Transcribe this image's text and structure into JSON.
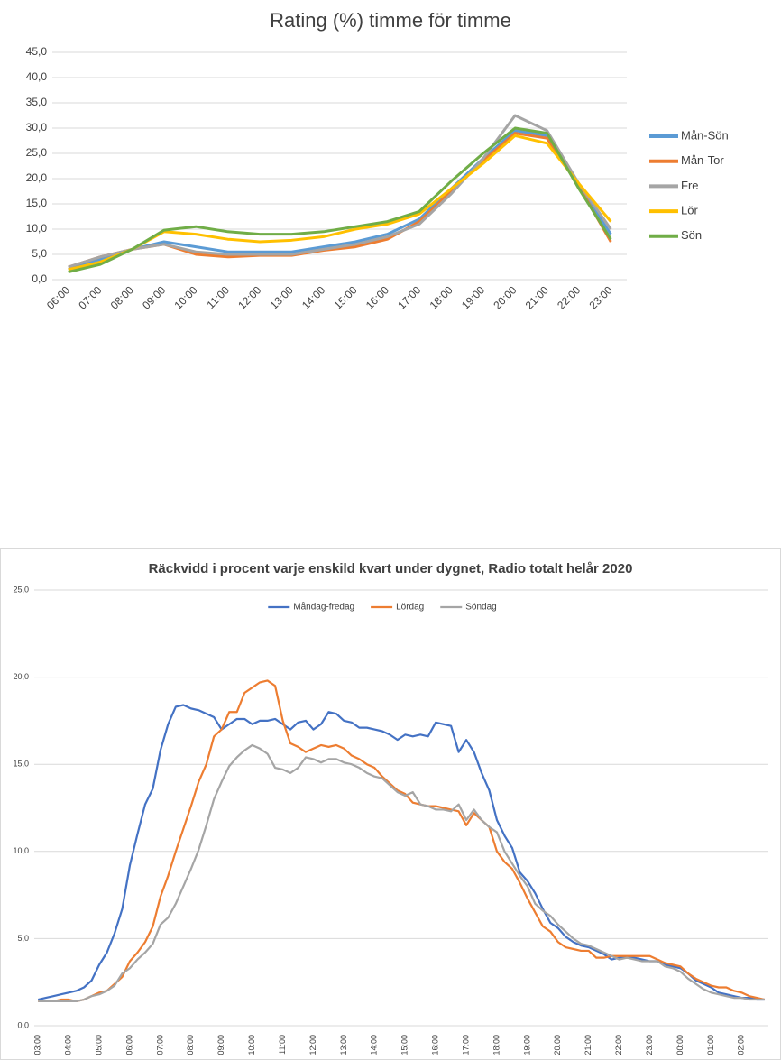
{
  "chart_data": [
    {
      "type": "line",
      "title": "Rating (%) timme för timme",
      "categories": [
        "06:00",
        "07:00",
        "08:00",
        "09:00",
        "10:00",
        "11:00",
        "12:00",
        "13:00",
        "14:00",
        "15:00",
        "16:00",
        "17:00",
        "18:00",
        "19:00",
        "20:00",
        "21:00",
        "22:00",
        "23:00"
      ],
      "series": [
        {
          "name": "Mån-Sön",
          "color": "#5b9bd5",
          "values": [
            2.0,
            4.0,
            6.0,
            7.5,
            6.5,
            5.5,
            5.5,
            5.5,
            6.5,
            7.5,
            9.0,
            12.0,
            18.0,
            24.0,
            29.5,
            28.5,
            18.5,
            9.0
          ]
        },
        {
          "name": "Mån-Tor",
          "color": "#ed7d31",
          "values": [
            2.5,
            4.5,
            6.0,
            7.0,
            5.0,
            4.5,
            4.8,
            4.8,
            5.8,
            6.5,
            8.0,
            11.5,
            17.5,
            23.5,
            29.0,
            28.0,
            18.5,
            7.5
          ]
        },
        {
          "name": "Fre",
          "color": "#a5a5a5",
          "values": [
            2.5,
            4.5,
            6.0,
            7.0,
            5.5,
            5.0,
            5.0,
            5.0,
            6.0,
            7.0,
            8.5,
            11.0,
            17.0,
            24.0,
            32.5,
            29.5,
            19.0,
            10.0
          ]
        },
        {
          "name": "Lör",
          "color": "#ffc000",
          "values": [
            2.0,
            3.5,
            6.0,
            9.5,
            9.0,
            8.0,
            7.5,
            7.8,
            8.5,
            10.0,
            11.0,
            13.0,
            18.0,
            23.0,
            28.5,
            27.0,
            19.0,
            11.5
          ]
        },
        {
          "name": "Sön",
          "color": "#70ad47",
          "values": [
            1.5,
            3.0,
            6.0,
            9.8,
            10.5,
            9.5,
            9.0,
            9.0,
            9.5,
            10.5,
            11.5,
            13.5,
            19.5,
            25.0,
            30.0,
            29.0,
            18.0,
            8.0
          ]
        }
      ],
      "ylim": [
        0,
        45
      ],
      "yticks": [
        {
          "value": 0,
          "label": "0,0"
        },
        {
          "value": 5,
          "label": "5,0"
        },
        {
          "value": 10,
          "label": "10,0"
        },
        {
          "value": 15,
          "label": "15,0"
        },
        {
          "value": 20,
          "label": "20,0"
        },
        {
          "value": 25,
          "label": "25,0"
        },
        {
          "value": 30,
          "label": "30,0"
        },
        {
          "value": 35,
          "label": "35,0"
        },
        {
          "value": 40,
          "label": "40,0"
        },
        {
          "value": 45,
          "label": "45,0"
        }
      ],
      "grid": true,
      "legend": "right"
    },
    {
      "type": "line",
      "title": "Räckvidd i procent varje enskild kvart under dygnet, Radio totalt helår 2020",
      "categories": [
        "03:00",
        null,
        null,
        null,
        "04:00",
        null,
        null,
        null,
        "05:00",
        null,
        null,
        null,
        "06:00",
        null,
        null,
        null,
        "07:00",
        null,
        null,
        null,
        "08:00",
        null,
        null,
        null,
        "09:00",
        null,
        null,
        null,
        "10:00",
        null,
        null,
        null,
        "11:00",
        null,
        null,
        null,
        "12:00",
        null,
        null,
        null,
        "13:00",
        null,
        null,
        null,
        "14:00",
        null,
        null,
        null,
        "15:00",
        null,
        null,
        null,
        "16:00",
        null,
        null,
        null,
        "17:00",
        null,
        null,
        null,
        "18:00",
        null,
        null,
        null,
        "19:00",
        null,
        null,
        null,
        "20:00",
        null,
        null,
        null,
        "21:00",
        null,
        null,
        null,
        "22:00",
        null,
        null,
        null,
        "23:00",
        null,
        null,
        null,
        "00:00",
        null,
        null,
        null,
        "01:00",
        null,
        null,
        null,
        "02:00",
        null,
        null,
        null
      ],
      "series": [
        {
          "name": "Måndag-fredag",
          "color": "#4472c4",
          "values": [
            1.5,
            1.6,
            1.7,
            1.8,
            1.9,
            2.0,
            2.2,
            2.6,
            3.5,
            4.2,
            5.3,
            6.7,
            9.2,
            11.0,
            12.7,
            13.6,
            15.8,
            17.3,
            18.3,
            18.4,
            18.2,
            18.1,
            17.9,
            17.7,
            17.0,
            17.3,
            17.6,
            17.6,
            17.3,
            17.5,
            17.5,
            17.6,
            17.3,
            17.0,
            17.4,
            17.5,
            17.0,
            17.3,
            18.0,
            17.9,
            17.5,
            17.4,
            17.1,
            17.1,
            17.0,
            16.9,
            16.7,
            16.4,
            16.7,
            16.6,
            16.7,
            16.6,
            17.4,
            17.3,
            17.2,
            15.7,
            16.4,
            15.7,
            14.5,
            13.5,
            11.8,
            10.9,
            10.2,
            8.8,
            8.3,
            7.6,
            6.7,
            5.9,
            5.6,
            5.1,
            4.8,
            4.6,
            4.5,
            4.3,
            4.1,
            3.8,
            3.9,
            3.9,
            3.9,
            3.8,
            3.7,
            3.7,
            3.5,
            3.4,
            3.3,
            3.0,
            2.6,
            2.4,
            2.2,
            1.9,
            1.8,
            1.7,
            1.6,
            1.6,
            1.5,
            1.5
          ]
        },
        {
          "name": "Lördag",
          "color": "#ed7d31",
          "values": [
            1.4,
            1.4,
            1.4,
            1.5,
            1.5,
            1.4,
            1.5,
            1.7,
            1.9,
            2.0,
            2.4,
            2.8,
            3.7,
            4.2,
            4.8,
            5.7,
            7.4,
            8.6,
            10.0,
            11.3,
            12.6,
            14.0,
            15.0,
            16.6,
            17.0,
            18.0,
            18.0,
            19.1,
            19.4,
            19.7,
            19.8,
            19.5,
            17.5,
            16.2,
            16.0,
            15.7,
            15.9,
            16.1,
            16.0,
            16.1,
            15.9,
            15.5,
            15.3,
            15.0,
            14.8,
            14.3,
            13.9,
            13.5,
            13.3,
            12.8,
            12.7,
            12.6,
            12.6,
            12.5,
            12.4,
            12.3,
            11.5,
            12.2,
            11.8,
            11.4,
            10.0,
            9.4,
            9.0,
            8.2,
            7.3,
            6.5,
            5.7,
            5.4,
            4.8,
            4.5,
            4.4,
            4.3,
            4.3,
            3.9,
            3.9,
            4.0,
            4.0,
            4.0,
            4.0,
            4.0,
            4.0,
            3.8,
            3.6,
            3.5,
            3.4,
            3.0,
            2.7,
            2.5,
            2.3,
            2.2,
            2.2,
            2.0,
            1.9,
            1.7,
            1.6,
            1.5
          ]
        },
        {
          "name": "Söndag",
          "color": "#a5a5a5",
          "values": [
            1.4,
            1.4,
            1.4,
            1.4,
            1.4,
            1.4,
            1.5,
            1.7,
            1.8,
            2.0,
            2.3,
            3.0,
            3.3,
            3.8,
            4.2,
            4.7,
            5.8,
            6.2,
            7.0,
            8.0,
            9.0,
            10.1,
            11.5,
            13.0,
            14.0,
            14.9,
            15.4,
            15.8,
            16.1,
            15.9,
            15.6,
            14.8,
            14.7,
            14.5,
            14.8,
            15.4,
            15.3,
            15.1,
            15.3,
            15.3,
            15.1,
            15.0,
            14.8,
            14.5,
            14.3,
            14.2,
            13.8,
            13.4,
            13.2,
            13.4,
            12.7,
            12.6,
            12.4,
            12.4,
            12.3,
            12.7,
            11.8,
            12.4,
            11.8,
            11.4,
            11.1,
            10.0,
            9.3,
            8.6,
            8.0,
            7.0,
            6.6,
            6.3,
            5.8,
            5.4,
            5.0,
            4.7,
            4.6,
            4.4,
            4.2,
            4.0,
            3.8,
            3.9,
            3.8,
            3.7,
            3.7,
            3.7,
            3.4,
            3.3,
            3.1,
            2.7,
            2.4,
            2.1,
            1.9,
            1.8,
            1.7,
            1.6,
            1.6,
            1.5,
            1.5,
            1.5
          ]
        }
      ],
      "ylim": [
        0,
        25
      ],
      "yticks": [
        {
          "value": 0,
          "label": "0,0"
        },
        {
          "value": 5,
          "label": "5,0"
        },
        {
          "value": 10,
          "label": "10,0"
        },
        {
          "value": 15,
          "label": "15,0"
        },
        {
          "value": 20,
          "label": "20,0"
        },
        {
          "value": 25,
          "label": "25,0"
        }
      ],
      "grid": true,
      "legend": "top"
    }
  ]
}
